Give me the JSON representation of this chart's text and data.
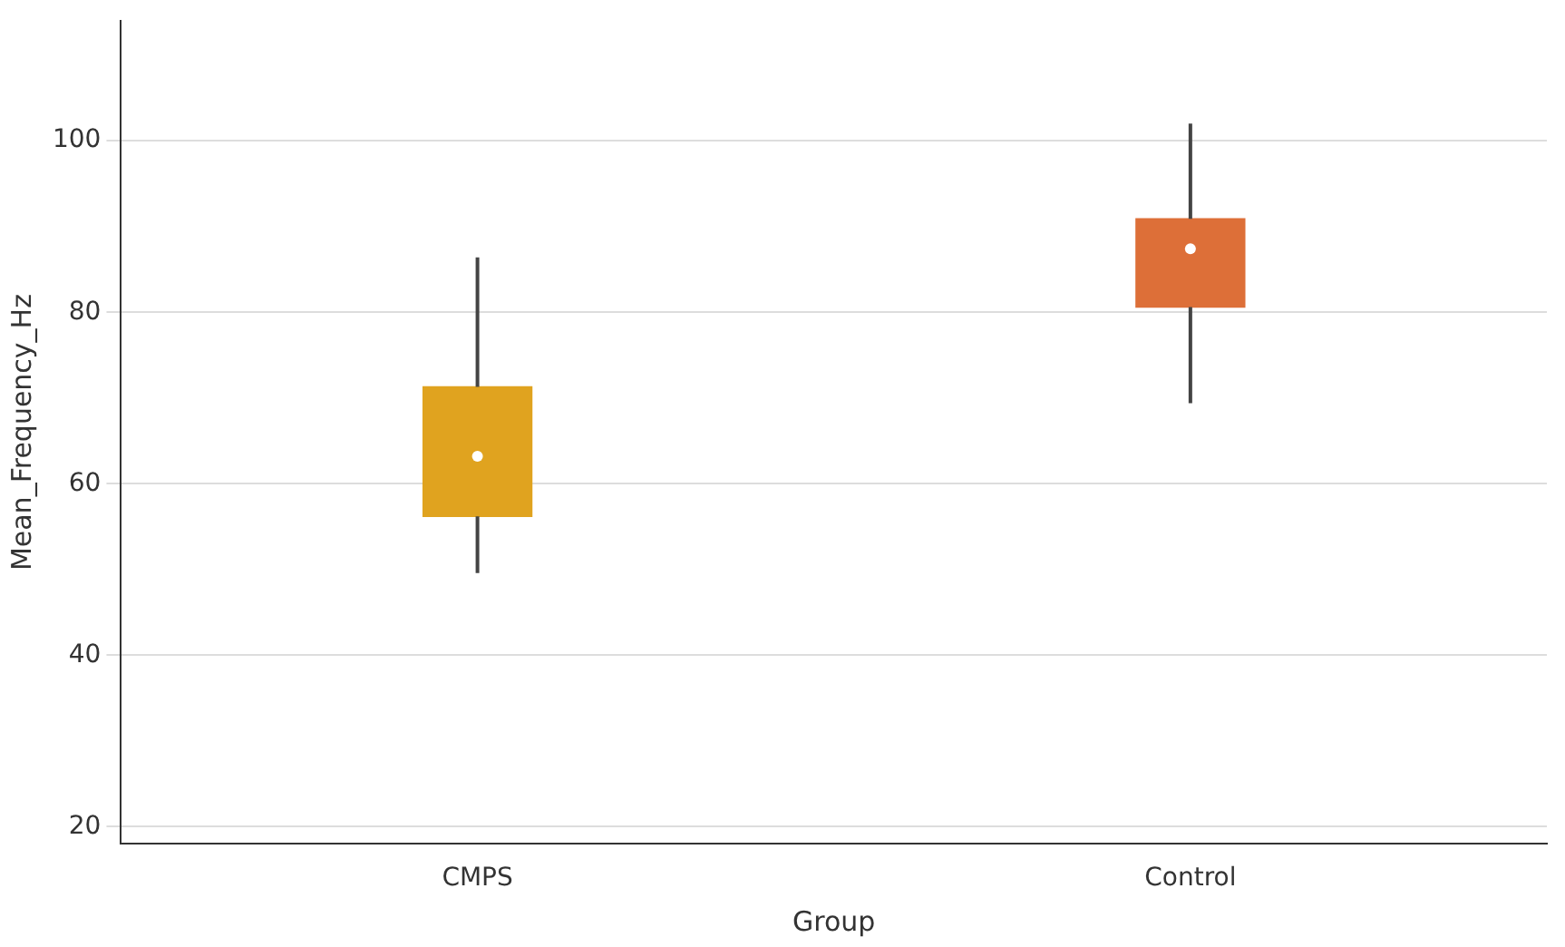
{
  "chart_data": {
    "type": "box",
    "xlabel": "Group",
    "ylabel": "Mean_Frequency_Hz",
    "categories": [
      "CMPS",
      "Control"
    ],
    "colors": [
      "#e0a31f",
      "#dd6f38"
    ],
    "boxes": [
      {
        "low": 49.6,
        "q1": 56.2,
        "median": 63.2,
        "q3": 71.3,
        "high": 86.4
      },
      {
        "low": 69.4,
        "q1": 80.6,
        "median": 87.4,
        "q3": 90.9,
        "high": 102
      }
    ],
    "ylim": [
      18,
      114
    ],
    "yticks": [
      20,
      40,
      60,
      80,
      100
    ],
    "grid": "y"
  }
}
